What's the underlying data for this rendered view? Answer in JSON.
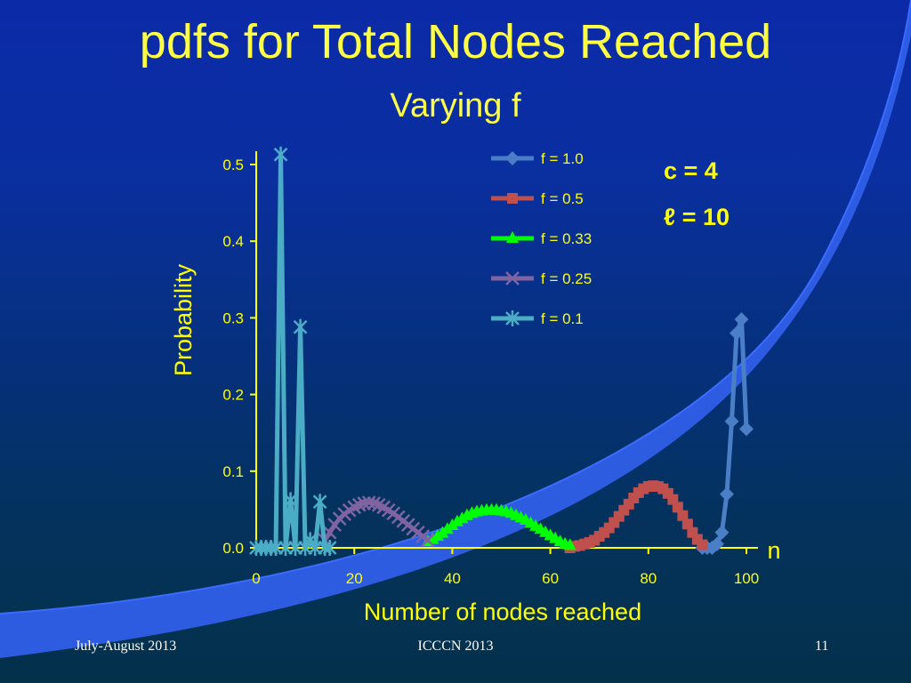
{
  "slide": {
    "title": "pdfs for Total Nodes Reached",
    "subtitle": "Varying f",
    "params": {
      "c_label": "c = 4",
      "l_label": "ℓ  = 10"
    },
    "footer": {
      "left": "July-August 2013",
      "center": "ICCCN 2013",
      "right": "11"
    }
  },
  "colors": {
    "title": "#ffff44",
    "axis": "#ffff00",
    "series_f1": "#4a7fc8",
    "series_f05": "#c0504d",
    "series_f033": "#00ff00",
    "series_f025": "#8064a2",
    "series_f01": "#4bacc6",
    "swoosh": "#2f5fe8"
  },
  "chart_data": {
    "type": "line",
    "title": "",
    "xlabel": "Number of nodes reached",
    "ylabel": "Probability",
    "x_end_label": "n",
    "xlim": [
      0,
      100
    ],
    "ylim": [
      0,
      0.5
    ],
    "xticks": [
      "0",
      "20",
      "40",
      "60",
      "80",
      "100"
    ],
    "yticks": [
      "0.0",
      "0.1",
      "0.2",
      "0.3",
      "0.4",
      "0.5"
    ],
    "legend_position": "top-right",
    "series": [
      {
        "name": "f = 1.0",
        "marker": "diamond",
        "x": [
          91,
          92,
          93,
          94,
          95,
          96,
          97,
          98,
          99,
          100
        ],
        "y": [
          0.0,
          0.0,
          0.0,
          0.005,
          0.02,
          0.07,
          0.165,
          0.28,
          0.298,
          0.155
        ]
      },
      {
        "name": "f = 0.5",
        "marker": "square",
        "x": [
          64,
          65,
          66,
          67,
          68,
          69,
          70,
          71,
          72,
          73,
          74,
          75,
          76,
          77,
          78,
          79,
          80,
          81,
          82,
          83,
          84,
          85,
          86,
          87,
          88,
          89,
          90,
          91
        ],
        "y": [
          0.0,
          0.002,
          0.003,
          0.005,
          0.007,
          0.01,
          0.015,
          0.02,
          0.026,
          0.033,
          0.041,
          0.049,
          0.057,
          0.065,
          0.072,
          0.077,
          0.08,
          0.081,
          0.08,
          0.077,
          0.071,
          0.063,
          0.053,
          0.042,
          0.031,
          0.02,
          0.011,
          0.004
        ]
      },
      {
        "name": "f = 0.33",
        "marker": "triangle",
        "x": [
          35,
          36,
          37,
          38,
          39,
          40,
          41,
          42,
          43,
          44,
          45,
          46,
          47,
          48,
          49,
          50,
          51,
          52,
          53,
          54,
          55,
          56,
          57,
          58,
          59,
          60,
          61,
          62,
          63,
          64
        ],
        "y": [
          0.008,
          0.011,
          0.015,
          0.019,
          0.024,
          0.029,
          0.034,
          0.038,
          0.042,
          0.045,
          0.047,
          0.048,
          0.049,
          0.049,
          0.049,
          0.048,
          0.047,
          0.045,
          0.042,
          0.039,
          0.036,
          0.032,
          0.028,
          0.024,
          0.02,
          0.016,
          0.012,
          0.008,
          0.005,
          0.003
        ]
      },
      {
        "name": "f = 0.25",
        "marker": "x",
        "x": [
          14,
          15,
          16,
          17,
          18,
          19,
          20,
          21,
          22,
          23,
          24,
          25,
          26,
          27,
          28,
          29,
          30,
          31,
          32,
          33,
          34,
          35
        ],
        "y": [
          0.01,
          0.02,
          0.03,
          0.038,
          0.044,
          0.049,
          0.053,
          0.056,
          0.058,
          0.059,
          0.058,
          0.056,
          0.053,
          0.049,
          0.045,
          0.04,
          0.035,
          0.03,
          0.025,
          0.02,
          0.015,
          0.01
        ]
      },
      {
        "name": "f = 0.1",
        "marker": "asterisk",
        "x": [
          0,
          1,
          2,
          3,
          4,
          5,
          6,
          7,
          8,
          9,
          10,
          11,
          12,
          13,
          14,
          15
        ],
        "y": [
          0.0,
          0.0,
          0.0,
          0.0,
          0.0,
          0.513,
          0.0,
          0.062,
          0.0,
          0.288,
          0.0,
          0.01,
          0.0,
          0.06,
          0.0,
          0.0
        ]
      }
    ]
  }
}
